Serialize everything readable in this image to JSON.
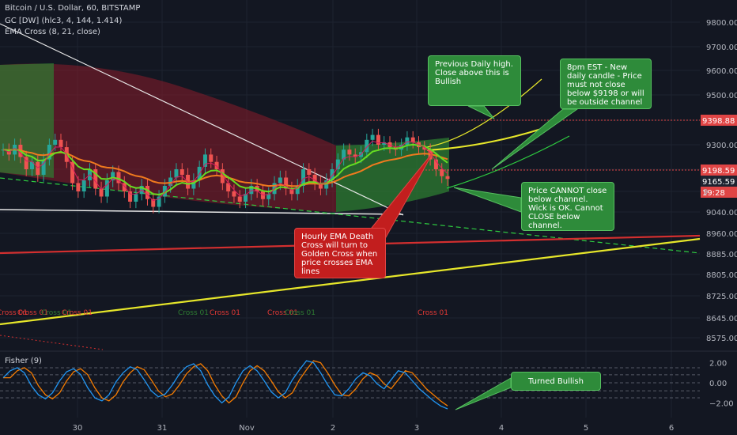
{
  "header": {
    "symbol_line": "Bitcoin / U.S. Dollar, 60, BITSTAMP",
    "indicator_gc": "GC [DW] (hlc3, 4, 144, 1.414)",
    "indicator_ema": "EMA Cross (8, 21, close)"
  },
  "fisher": {
    "title": "Fisher (9)"
  },
  "annotations": {
    "prev_daily_high": "Previous Daily high. Close above this is Bullish",
    "new_daily_candle": "8pm EST - New daily candle - Price must not close below $9198 or will be outside channel",
    "price_cannot_close": "Price CANNOT close below channel. Wick is OK.  Cannot CLOSE below channel.",
    "ema_death_cross": "Hourly EMA Death Cross will turn to Golden Cross when price crosses EMA lines",
    "turned_bullish": "Turned Bullish"
  },
  "cross_labels": [
    "Cross 01",
    "Cross 01",
    "Cross 01",
    "Cross 01",
    "Cross 01",
    "Cross 01",
    "Cross 01",
    "Cross 01"
  ],
  "price_tags": {
    "upper": "9398.88",
    "lower": "9198.59",
    "current": "9165.59",
    "countdown": "19:28",
    "partial": "9"
  },
  "colors": {
    "background": "#131722",
    "bull_candle": "#26a69a",
    "bear_candle": "#ef5350",
    "channel_green": "#2e7d32",
    "channel_red": "#8b1c2a",
    "ema_fast": "#66dd22",
    "ema_slow": "#f07a1e",
    "trend_yellow": "#e6e62a",
    "trend_red": "#d32f2f",
    "fisher_line": "#2196f3",
    "fisher_trigger": "#f57c00",
    "callout_green": "#2e8b3a",
    "callout_red": "#c21e1e"
  },
  "chart_data": [
    {
      "type": "candlestick",
      "title": "Bitcoin / U.S. Dollar, 60, BITSTAMP",
      "x_ticks": [
        "30",
        "31",
        "Nov",
        "2",
        "3",
        "4",
        "5",
        "6"
      ],
      "y_ticks": [
        9800,
        9700,
        9600,
        9500,
        9400,
        9300,
        9200,
        9120,
        9040,
        8960,
        8885,
        8805,
        8725,
        8645,
        8575
      ],
      "y_tick_labels": [
        "9800.00",
        "9700.00",
        "9600.00",
        "9500.00",
        "9400.00",
        "9300.00",
        "9200.00",
        "9120.00",
        "9040.00",
        "8960.00",
        "8885.00",
        "8805.00",
        "8725.00",
        "8645.00",
        "8575.00"
      ],
      "series_hint": "hourly candles oscillating 9050–9400, last ≈ 9165.59",
      "price_close_series": [
        9280,
        9260,
        9300,
        9250,
        9200,
        9230,
        9180,
        9240,
        9300,
        9320,
        9290,
        9230,
        9150,
        9120,
        9160,
        9200,
        9130,
        9100,
        9160,
        9190,
        9150,
        9120,
        9080,
        9110,
        9140,
        9090,
        9060,
        9100,
        9140,
        9170,
        9200,
        9180,
        9130,
        9160,
        9210,
        9260,
        9230,
        9200,
        9150,
        9120,
        9100,
        9080,
        9110,
        9140,
        9120,
        9090,
        9110,
        9150,
        9170,
        9130,
        9110,
        9140,
        9200,
        9180,
        9150,
        9130,
        9160,
        9200,
        9240,
        9280,
        9260,
        9250,
        9270,
        9320,
        9340,
        9300,
        9310,
        9290,
        9280,
        9300,
        9330,
        9310,
        9290,
        9280,
        9240,
        9200,
        9175,
        9165
      ],
      "horizontal_levels": [
        9398.88,
        9198.59
      ],
      "last_price": 9165.59
    },
    {
      "type": "line",
      "title": "Fisher (9)",
      "y_ticks": [
        2.0,
        0.0,
        -2.0
      ],
      "y_tick_labels": [
        "2.00",
        "0.00",
        "−2.00"
      ],
      "series": [
        {
          "values": [
            0.5,
            1.2,
            1.5,
            1.0,
            -0.3,
            -1.2,
            -1.6,
            -1.0,
            0.2,
            1.1,
            1.4,
            0.8,
            -0.5,
            -1.5,
            -1.8,
            -1.2,
            0.1,
            1.0,
            1.6,
            1.3,
            0.3,
            -0.8,
            -1.4,
            -1.1,
            -0.2,
            0.9,
            1.6,
            1.9,
            1.2,
            -0.2,
            -1.3,
            -2.0,
            -1.4,
            0.0,
            1.2,
            1.7,
            1.2,
            0.2,
            -0.9,
            -1.5,
            -1.0,
            0.3,
            1.3,
            2.2,
            2.0,
            1.0,
            -0.2,
            -1.2,
            -1.3,
            -0.6,
            0.4,
            1.0,
            0.7,
            -0.1,
            -0.6,
            0.3,
            1.2,
            1.0,
            0.2,
            -0.6,
            -1.2,
            -1.8,
            -2.3,
            -2.6
          ]
        }
      ]
    }
  ]
}
